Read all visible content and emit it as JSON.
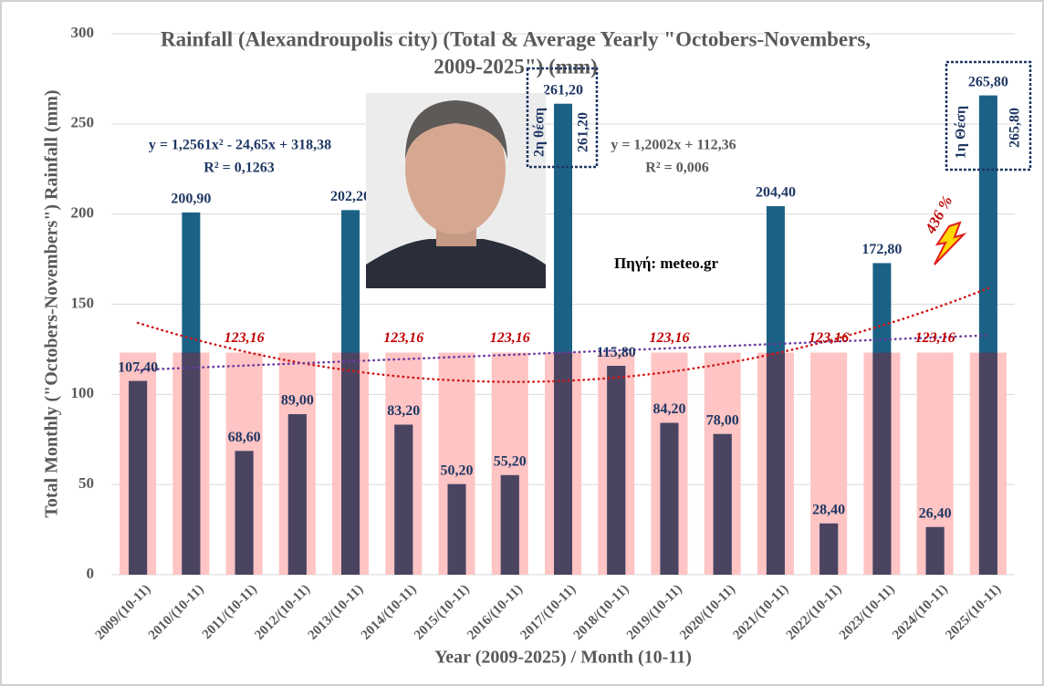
{
  "chart_data": {
    "type": "bar",
    "title": [
      "Rainfall (Alexandroupolis city) (Total & Average Yearly \"Octobers-Novembers,",
      "2009-2025\") (mm)"
    ],
    "y_label": "Total Monthly (\"Octobers-Novembers\") Rainfall (mm)",
    "x_label": "Year (2009-2025) / Month (10-11)",
    "categories": [
      "2009/(10-11)",
      "2010/(10-11)",
      "2011/(10-11)",
      "2012/(10-11)",
      "2013/(10-11)",
      "2014/(10-11)",
      "2015/(10-11)",
      "2016/(10-11)",
      "2017/(10-11)",
      "2018/(10-11)",
      "2019/(10-11)",
      "2020/(10-11)",
      "2021/(10-11)",
      "2022/(10-11)",
      "2023/(10-11)",
      "2024/(10-11)",
      "2025/(10-11)"
    ],
    "series": [
      {
        "name": "Total",
        "color": "#1b6185",
        "low_color": "#4a4461",
        "values": [
          107.4,
          200.9,
          68.6,
          89.0,
          202.2,
          83.2,
          50.2,
          55.2,
          261.2,
          115.8,
          84.2,
          78.0,
          204.4,
          28.4,
          172.8,
          26.4,
          265.8
        ],
        "value_labels": [
          "107,40",
          "200,90",
          "68,60",
          "89,00",
          "202,20",
          "83,20",
          "50,20",
          "55,20",
          "261,20",
          "115,80",
          "84,20",
          "78,00",
          "204,40",
          "28,40",
          "172,80",
          "26,40",
          "265,80"
        ]
      },
      {
        "name": "Average",
        "color": "#ffc4c4",
        "values": [
          123.16,
          123.16,
          123.16,
          123.16,
          123.16,
          123.16,
          123.16,
          123.16,
          123.16,
          123.16,
          123.16,
          123.16,
          123.16,
          123.16,
          123.16,
          123.16,
          123.16
        ],
        "value_labels": [
          null,
          null,
          "123,16",
          null,
          null,
          "123,16",
          null,
          "123,16",
          null,
          null,
          "123,16",
          null,
          null,
          "123,16",
          null,
          "123,16",
          null
        ]
      }
    ],
    "trendlines": [
      {
        "kind": "polynomial",
        "color": "#d01818",
        "equation": "y = 1,2561x² - 24,65x + 318,38",
        "r2": "R² = 0,1263"
      },
      {
        "kind": "linear",
        "color": "#6a3aa0",
        "equation": "y = 1,2002x + 112,36",
        "r2": "R² = 0,006"
      }
    ],
    "annotations": {
      "second": {
        "rank": "2η θέση",
        "value": "261,20"
      },
      "first": {
        "rank": "1η Θέση",
        "value": "265,80"
      },
      "source": "Πηγή: meteo.gr",
      "increase": "436 %"
    },
    "ylim": [
      0,
      300
    ],
    "yticks": [
      0,
      50,
      100,
      150,
      200,
      250,
      300
    ],
    "grid": true
  }
}
